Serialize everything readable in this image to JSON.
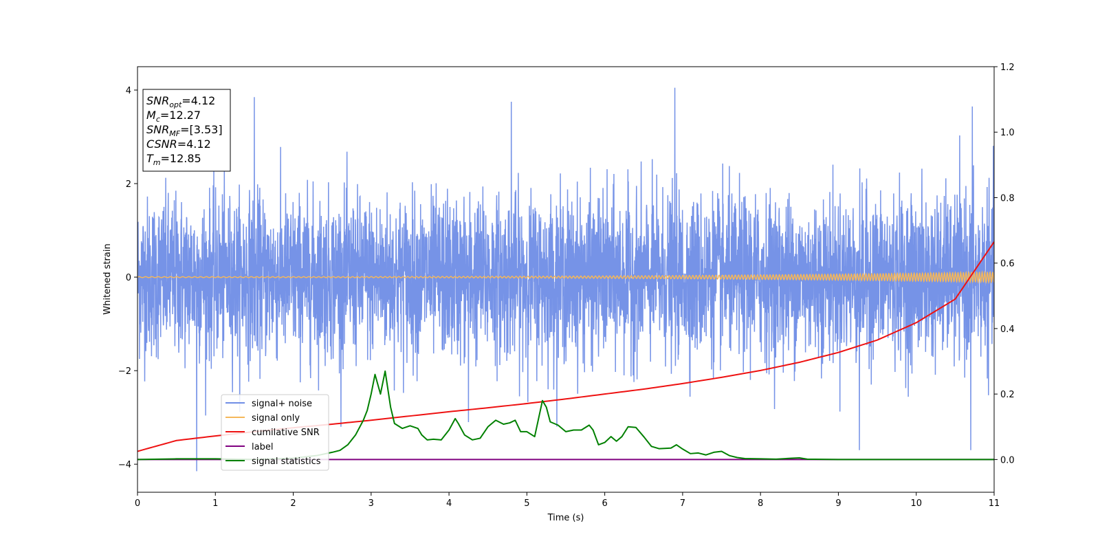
{
  "chart_data": {
    "type": "line",
    "xlabel": "Time (s)",
    "ylabel": "Whitened strain",
    "xlim": [
      0,
      11
    ],
    "ylim": [
      -4.6,
      4.5
    ],
    "ylim_right": [
      -0.1,
      1.2
    ],
    "x_ticks": [
      0,
      1,
      2,
      3,
      4,
      5,
      6,
      7,
      8,
      9,
      10,
      11
    ],
    "y_ticks": [
      -4,
      -2,
      0,
      2,
      4
    ],
    "y_ticks_right": [
      0.0,
      0.2,
      0.4,
      0.6,
      0.8,
      1.0,
      1.2
    ],
    "grid": false,
    "legend_position": "lower-left",
    "annotation": [
      {
        "name": "SNR",
        "sub": "opt",
        "value": "=4.12"
      },
      {
        "name": "M",
        "sub": "c",
        "value": "=12.27"
      },
      {
        "name": "SNR",
        "sub": "MF",
        "value": "=[3.53]"
      },
      {
        "name": "CSNR",
        "sub": "",
        "value": "=4.12"
      },
      {
        "name": "T",
        "sub": "m",
        "value": "=12.85"
      }
    ],
    "series": [
      {
        "name": "signal+ noise",
        "color": "#6f8de6",
        "axis": "left",
        "kind": "noise",
        "typical_range": [
          -2.0,
          2.0
        ],
        "extremes": [
          {
            "x": 0.76,
            "y": -4.15
          },
          {
            "x": 1.5,
            "y": 3.85
          },
          {
            "x": 4.25,
            "y": -3.1
          },
          {
            "x": 4.8,
            "y": 3.75
          },
          {
            "x": 6.9,
            "y": 4.05
          },
          {
            "x": 9.27,
            "y": -3.7
          },
          {
            "x": 10.7,
            "y": -3.7
          },
          {
            "x": 10.72,
            "y": 3.65
          }
        ]
      },
      {
        "name": "signal only",
        "color": "#f5b75a",
        "axis": "left",
        "kind": "chirp",
        "amplitude_range": [
          0.0,
          0.1
        ]
      },
      {
        "name": "cumilative SNR",
        "color": "#ee1111",
        "axis": "right",
        "x": [
          0,
          0.5,
          1,
          1.5,
          2,
          2.5,
          3,
          3.5,
          4,
          4.5,
          5,
          5.5,
          6,
          6.5,
          7,
          7.5,
          8,
          8.5,
          9,
          9.5,
          10,
          10.5,
          11
        ],
        "y": [
          0.025,
          0.058,
          0.072,
          0.085,
          0.097,
          0.108,
          0.12,
          0.133,
          0.146,
          0.158,
          0.171,
          0.185,
          0.2,
          0.215,
          0.232,
          0.251,
          0.272,
          0.297,
          0.327,
          0.365,
          0.418,
          0.49,
          0.665
        ]
      },
      {
        "name": "label",
        "color": "#800080",
        "axis": "right",
        "x": [
          0,
          11
        ],
        "y": [
          0.0,
          0.0
        ]
      },
      {
        "name": "signal statistics",
        "color": "#008000",
        "axis": "right",
        "x": [
          0,
          0.5,
          1,
          1.5,
          2,
          2.3,
          2.5,
          2.6,
          2.7,
          2.8,
          2.9,
          2.95,
          3.0,
          3.05,
          3.12,
          3.18,
          3.25,
          3.3,
          3.4,
          3.5,
          3.6,
          3.65,
          3.72,
          3.8,
          3.9,
          4.0,
          4.08,
          4.12,
          4.2,
          4.3,
          4.4,
          4.5,
          4.6,
          4.7,
          4.78,
          4.85,
          4.92,
          5.0,
          5.1,
          5.2,
          5.25,
          5.3,
          5.4,
          5.5,
          5.6,
          5.7,
          5.8,
          5.85,
          5.92,
          6.0,
          6.08,
          6.15,
          6.22,
          6.3,
          6.4,
          6.5,
          6.6,
          6.7,
          6.85,
          6.92,
          7.0,
          7.1,
          7.2,
          7.3,
          7.4,
          7.5,
          7.6,
          7.7,
          7.8,
          8.0,
          8.2,
          8.4,
          8.5,
          8.6,
          9.0,
          9.5,
          10,
          10.5,
          11
        ],
        "y": [
          0.0,
          0.002,
          0.002,
          0.0,
          0.004,
          0.012,
          0.022,
          0.028,
          0.045,
          0.075,
          0.12,
          0.15,
          0.2,
          0.26,
          0.2,
          0.27,
          0.16,
          0.11,
          0.095,
          0.103,
          0.095,
          0.075,
          0.06,
          0.062,
          0.06,
          0.09,
          0.125,
          0.11,
          0.075,
          0.06,
          0.065,
          0.1,
          0.12,
          0.108,
          0.112,
          0.12,
          0.085,
          0.085,
          0.07,
          0.18,
          0.16,
          0.115,
          0.105,
          0.085,
          0.09,
          0.09,
          0.105,
          0.09,
          0.045,
          0.052,
          0.07,
          0.056,
          0.07,
          0.1,
          0.098,
          0.07,
          0.04,
          0.033,
          0.035,
          0.045,
          0.032,
          0.018,
          0.02,
          0.014,
          0.022,
          0.025,
          0.012,
          0.006,
          0.003,
          0.002,
          0.001,
          0.004,
          0.005,
          0.001,
          0.0,
          0.0,
          0.0,
          0.0,
          0.0
        ]
      }
    ]
  }
}
